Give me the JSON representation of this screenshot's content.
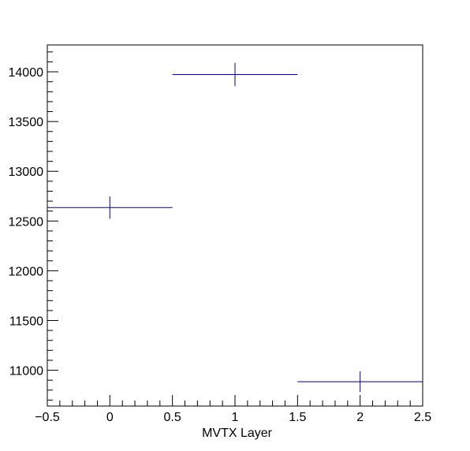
{
  "chart_data": {
    "type": "scatter",
    "title": "",
    "xlabel": "MVTX Layer",
    "ylabel": "",
    "xlim": [
      -0.5,
      2.5
    ],
    "ylim": [
      10640,
      14270
    ],
    "x_ticks": [
      -0.5,
      0,
      0.5,
      1,
      1.5,
      2,
      2.5
    ],
    "x_tick_labels": [
      "−0.5",
      "0",
      "0.5",
      "1",
      "1.5",
      "2",
      "2.5"
    ],
    "y_ticks": [
      11000,
      11500,
      12000,
      12500,
      13000,
      13500,
      14000
    ],
    "y_tick_labels": [
      "11000",
      "11500",
      "12000",
      "12500",
      "13000",
      "13500",
      "14000"
    ],
    "series": [
      {
        "points": [
          {
            "x": 0,
            "y": 12635,
            "xerr": 0.5,
            "yerr": 112
          },
          {
            "x": 1,
            "y": 13973,
            "xerr": 0.5,
            "yerr": 118
          },
          {
            "x": 2,
            "y": 10885,
            "xerr": 0.5,
            "yerr": 104
          }
        ],
        "color": "#000080"
      }
    ],
    "grid": false,
    "legend": "none"
  }
}
